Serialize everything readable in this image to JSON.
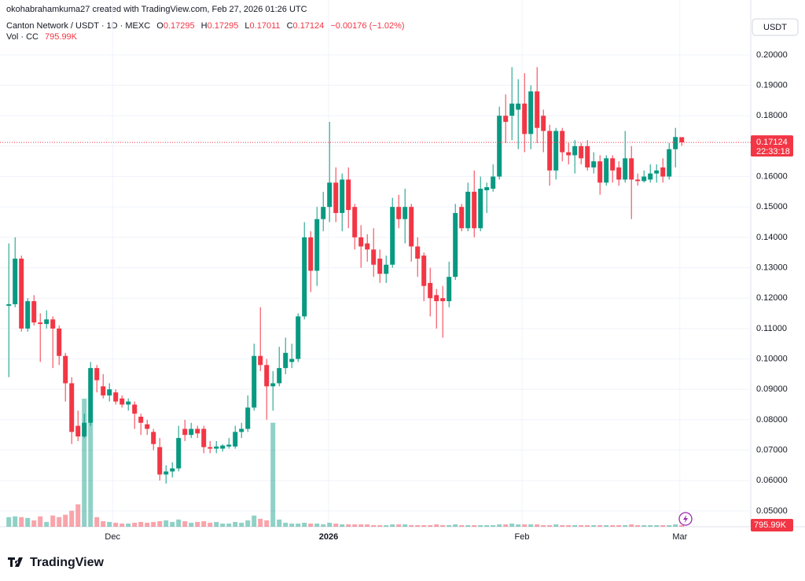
{
  "attribution": "okohabrahamkuma27 created with TradingView.com, Feb 27, 2026 01:26 UTC",
  "brand": "TradingView",
  "chart_data": {
    "type": "candlestick",
    "symbol": "Canton Network / USDT · 1D · MEXC",
    "ohlc_keys": [
      "O",
      "H",
      "L",
      "C"
    ],
    "change_label": "−0.00176 (−1.02%)",
    "volume_title": "Vol · CC",
    "volume_label": "795.99K",
    "currency": "USDT",
    "countdown": "22:33:18",
    "up_color": "#089981",
    "down_color": "#f23645",
    "open": [
      0.1175,
      0.118,
      0.133,
      0.11,
      0.119,
      0.112,
      0.1115,
      0.113,
      0.11,
      0.101,
      0.092,
      0.078,
      0.0745,
      0.079,
      0.097,
      0.091,
      0.088,
      0.089,
      0.087,
      0.085,
      0.085,
      0.081,
      0.0785,
      0.076,
      0.071,
      0.062,
      0.063,
      0.064,
      0.077,
      0.075,
      0.077,
      0.077,
      0.071,
      0.0705,
      0.0705,
      0.0712,
      0.0712,
      0.076,
      0.077,
      0.084,
      0.101,
      0.098,
      0.091,
      0.092,
      0.097,
      0.099,
      0.1,
      0.114,
      0.14,
      0.129,
      0.146,
      0.15,
      0.158,
      0.148,
      0.159,
      0.15,
      0.14,
      0.138,
      0.136,
      0.133,
      0.128,
      0.131,
      0.15,
      0.146,
      0.15,
      0.137,
      0.134,
      0.125,
      0.121,
      0.12,
      0.119,
      0.127,
      0.15,
      0.143,
      0.155,
      0.143,
      0.1555,
      0.156,
      0.16,
      0.18,
      0.18,
      0.182,
      0.184,
      0.174,
      0.188,
      0.18,
      0.175,
      0.162,
      0.175,
      0.168,
      0.167,
      0.17,
      0.17,
      0.163,
      0.165,
      0.158,
      0.166,
      0.163,
      0.159,
      0.166,
      0.159,
      0.1585,
      0.159,
      0.161,
      0.163,
      0.16,
      0.169,
      0.17295
    ],
    "high": [
      0.138,
      0.14,
      0.134,
      0.12,
      0.121,
      0.115,
      0.116,
      0.114,
      0.111,
      0.102,
      0.094,
      0.083,
      0.082,
      0.099,
      0.098,
      0.095,
      0.092,
      0.09,
      0.088,
      0.087,
      0.086,
      0.082,
      0.08,
      0.077,
      0.074,
      0.065,
      0.066,
      0.078,
      0.08,
      0.079,
      0.078,
      0.078,
      0.073,
      0.073,
      0.072,
      0.074,
      0.078,
      0.079,
      0.088,
      0.105,
      0.117,
      0.1,
      0.096,
      0.104,
      0.107,
      0.105,
      0.115,
      0.145,
      0.142,
      0.15,
      0.155,
      0.178,
      0.163,
      0.161,
      0.163,
      0.151,
      0.144,
      0.141,
      0.143,
      0.136,
      0.134,
      0.153,
      0.154,
      0.156,
      0.151,
      0.14,
      0.135,
      0.13,
      0.123,
      0.124,
      0.132,
      0.151,
      0.151,
      0.158,
      0.162,
      0.16,
      0.158,
      0.164,
      0.183,
      0.187,
      0.196,
      0.192,
      0.194,
      0.19,
      0.196,
      0.182,
      0.177,
      0.176,
      0.176,
      0.171,
      0.172,
      0.171,
      0.172,
      0.168,
      0.167,
      0.167,
      0.167,
      0.165,
      0.175,
      0.17,
      0.161,
      0.162,
      0.164,
      0.164,
      0.166,
      0.171,
      0.176,
      0.17295
    ],
    "low": [
      0.094,
      0.117,
      0.109,
      0.109,
      0.111,
      0.099,
      0.11,
      0.097,
      0.098,
      0.086,
      0.072,
      0.073,
      0.074,
      0.078,
      0.089,
      0.087,
      0.086,
      0.085,
      0.084,
      0.083,
      0.077,
      0.075,
      0.075,
      0.07,
      0.06,
      0.059,
      0.061,
      0.063,
      0.073,
      0.074,
      0.074,
      0.069,
      0.069,
      0.069,
      0.0695,
      0.0705,
      0.0705,
      0.074,
      0.076,
      0.083,
      0.096,
      0.08,
      0.083,
      0.091,
      0.095,
      0.097,
      0.099,
      0.113,
      0.122,
      0.124,
      0.142,
      0.145,
      0.145,
      0.142,
      0.143,
      0.136,
      0.13,
      0.132,
      0.127,
      0.125,
      0.125,
      0.13,
      0.143,
      0.138,
      0.132,
      0.127,
      0.119,
      0.114,
      0.11,
      0.107,
      0.117,
      0.126,
      0.142,
      0.142,
      0.14,
      0.142,
      0.148,
      0.155,
      0.159,
      0.171,
      0.172,
      0.169,
      0.168,
      0.169,
      0.171,
      0.168,
      0.157,
      0.159,
      0.165,
      0.164,
      0.161,
      0.164,
      0.162,
      0.161,
      0.154,
      0.157,
      0.158,
      0.157,
      0.158,
      0.146,
      0.157,
      0.158,
      0.158,
      0.158,
      0.158,
      0.159,
      0.163,
      0.17011
    ],
    "close": [
      0.118,
      0.133,
      0.11,
      0.119,
      0.112,
      0.1115,
      0.113,
      0.11,
      0.101,
      0.092,
      0.076,
      0.0745,
      0.079,
      0.097,
      0.093,
      0.088,
      0.09,
      0.086,
      0.085,
      0.086,
      0.082,
      0.079,
      0.077,
      0.072,
      0.062,
      0.063,
      0.064,
      0.074,
      0.075,
      0.077,
      0.0755,
      0.071,
      0.0705,
      0.0712,
      0.0715,
      0.0718,
      0.076,
      0.077,
      0.084,
      0.101,
      0.098,
      0.091,
      0.092,
      0.097,
      0.102,
      0.1,
      0.114,
      0.14,
      0.129,
      0.146,
      0.15,
      0.158,
      0.148,
      0.159,
      0.149,
      0.14,
      0.137,
      0.136,
      0.131,
      0.128,
      0.131,
      0.15,
      0.146,
      0.15,
      0.137,
      0.133,
      0.124,
      0.12,
      0.119,
      0.119,
      0.127,
      0.148,
      0.143,
      0.155,
      0.143,
      0.156,
      0.1565,
      0.16,
      0.18,
      0.178,
      0.184,
      0.184,
      0.174,
      0.188,
      0.176,
      0.175,
      0.162,
      0.175,
      0.168,
      0.167,
      0.17,
      0.166,
      0.163,
      0.165,
      0.158,
      0.166,
      0.162,
      0.159,
      0.166,
      0.159,
      0.1585,
      0.16,
      0.161,
      0.162,
      0.16,
      0.169,
      0.173,
      0.17124
    ],
    "volume": [
      4800,
      5200,
      4800,
      4400,
      3200,
      5200,
      2400,
      5600,
      4800,
      6000,
      8000,
      11200,
      64000,
      52000,
      4800,
      2800,
      2400,
      2000,
      1600,
      1600,
      2000,
      2400,
      2000,
      2400,
      2800,
      3200,
      2400,
      3600,
      2800,
      2000,
      2400,
      2800,
      2000,
      2400,
      1600,
      1600,
      2400,
      2000,
      3200,
      5600,
      4000,
      3200,
      52000,
      3600,
      2000,
      1600,
      1600,
      2000,
      1600,
      1600,
      1200,
      2000,
      1600,
      1200,
      1200,
      1200,
      1200,
      1200,
      800,
      800,
      800,
      1200,
      1200,
      1200,
      800,
      800,
      800,
      800,
      1200,
      800,
      800,
      1200,
      800,
      800,
      800,
      800,
      800,
      800,
      1200,
      1200,
      1600,
      1200,
      1200,
      1200,
      1200,
      800,
      800,
      1200,
      800,
      800,
      800,
      800,
      800,
      800,
      800,
      800,
      800,
      800,
      800,
      1200,
      800,
      800,
      800,
      800,
      800,
      800,
      1200,
      795.99
    ],
    "vlim": [
      0,
      66000
    ],
    "ylim": [
      0.0448,
      0.2129
    ],
    "yticks": [
      {
        "value": 0.05,
        "label": "0.05000"
      },
      {
        "value": 0.06,
        "label": "0.06000"
      },
      {
        "value": 0.07,
        "label": "0.07000"
      },
      {
        "value": 0.08,
        "label": "0.08000"
      },
      {
        "value": 0.09,
        "label": "0.09000"
      },
      {
        "value": 0.1,
        "label": "0.10000"
      },
      {
        "value": 0.11,
        "label": "0.11000"
      },
      {
        "value": 0.12,
        "label": "0.12000"
      },
      {
        "value": 0.13,
        "label": "0.13000"
      },
      {
        "value": 0.14,
        "label": "0.14000"
      },
      {
        "value": 0.15,
        "label": "0.15000"
      },
      {
        "value": 0.16,
        "label": "0.16000"
      },
      {
        "value": 0.17,
        "label": "0.17000"
      },
      {
        "value": 0.18,
        "label": "0.18000"
      },
      {
        "value": 0.19,
        "label": "0.19000"
      },
      {
        "value": 0.2,
        "label": "0.20000"
      }
    ],
    "xlim": [
      -0.4,
      117.35
    ],
    "xticks": [
      {
        "value": 16.5,
        "label": "Dec"
      },
      {
        "value": 50.85,
        "label": "2026"
      },
      {
        "value": 81.6,
        "label": "Feb"
      },
      {
        "value": 106.7,
        "label": "Mar"
      }
    ],
    "grid": true
  }
}
